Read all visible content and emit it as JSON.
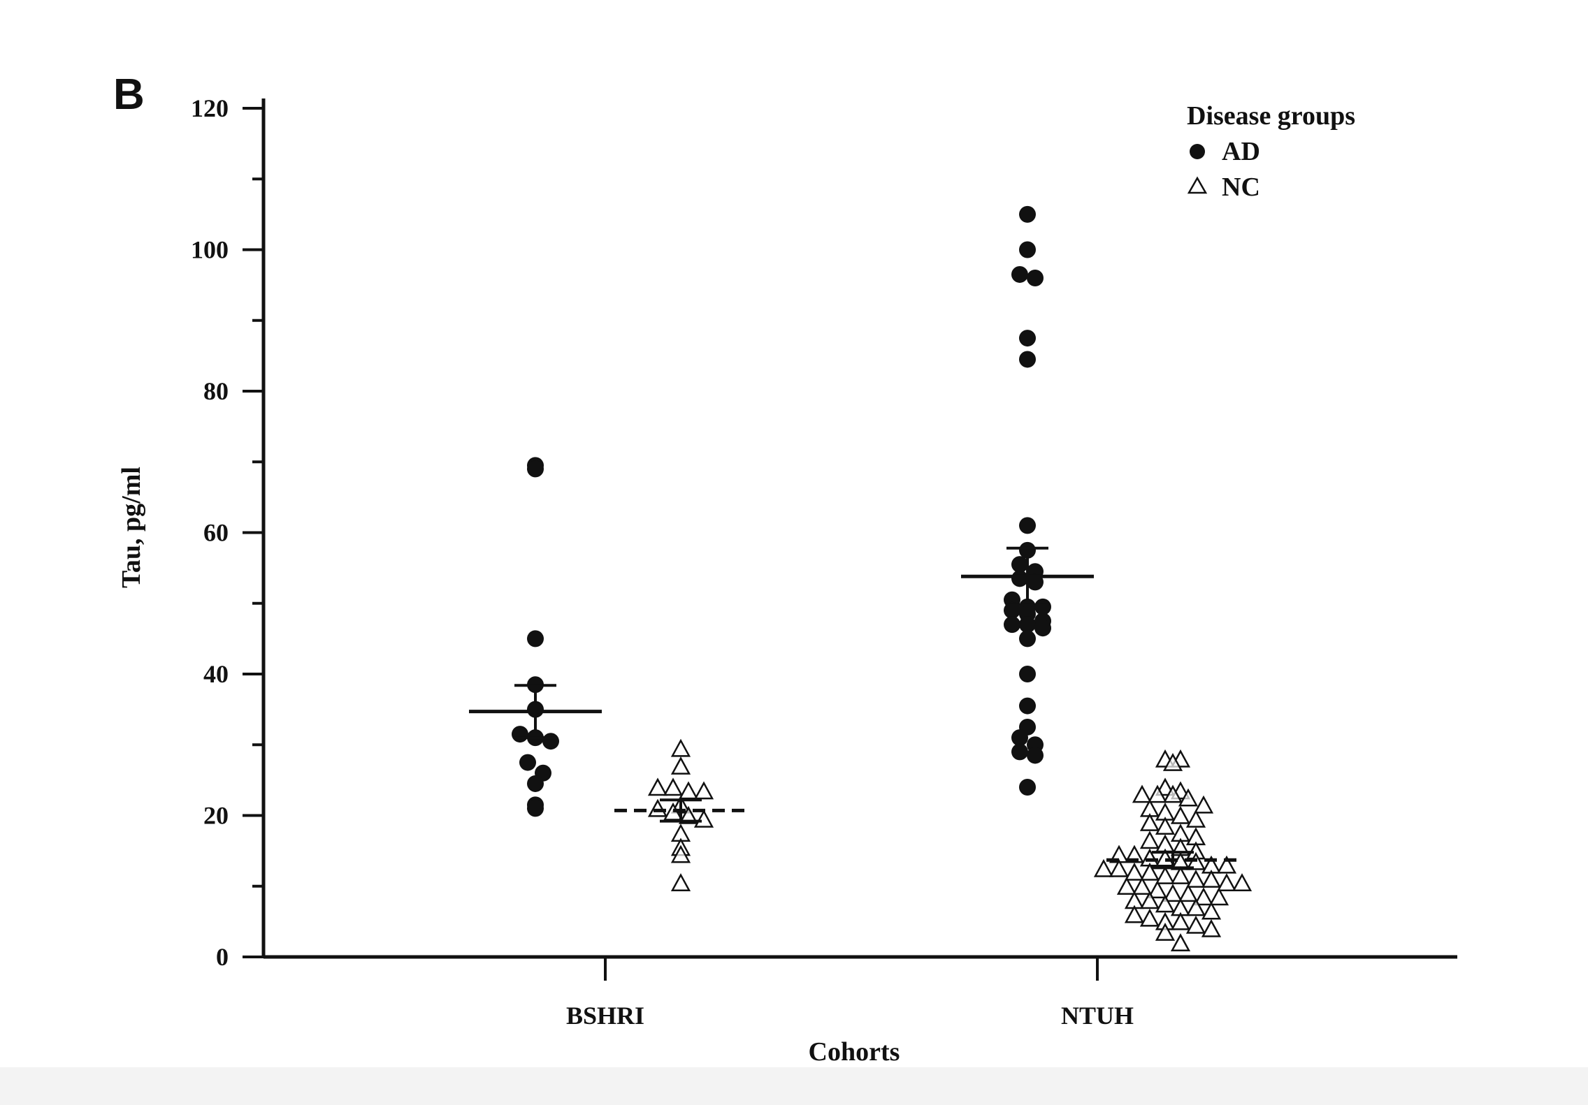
{
  "panel_label": "B",
  "chart_data": {
    "type": "scatter",
    "xlabel": "Cohorts",
    "ylabel": "Tau, pg/ml",
    "categories": [
      "BSHRI",
      "NTUH"
    ],
    "ylim": [
      0,
      120
    ],
    "yticks": [
      0,
      20,
      40,
      60,
      80,
      100,
      120
    ],
    "grid": false,
    "legend": {
      "title": "Disease groups",
      "placement": "top-right",
      "entries": [
        {
          "label": "AD",
          "marker": "filled-circle"
        },
        {
          "label": "NC",
          "marker": "open-triangle"
        }
      ]
    },
    "series": [
      {
        "name": "AD",
        "marker": "filled-circle",
        "color": "#111111",
        "groups": [
          {
            "category": "BSHRI",
            "mean": 34.7,
            "sem_upper": 38.4,
            "sem_lower": 31.0,
            "values": [
              69.5,
              69.0,
              45.0,
              38.5,
              35.0,
              31.5,
              31.0,
              30.5,
              27.5,
              26.0,
              24.5,
              21.5,
              21.0
            ]
          },
          {
            "category": "NTUH",
            "mean": 53.8,
            "sem_upper": 57.8,
            "sem_lower": 49.8,
            "values": [
              105.0,
              100.0,
              96.5,
              96.0,
              87.5,
              84.5,
              61.0,
              57.5,
              55.5,
              54.5,
              53.5,
              53.0,
              50.5,
              49.5,
              49.5,
              49.0,
              48.5,
              47.5,
              47.0,
              47.0,
              46.5,
              45.0,
              40.0,
              35.5,
              32.5,
              31.0,
              30.0,
              29.0,
              28.5,
              24.0
            ]
          }
        ]
      },
      {
        "name": "NC",
        "marker": "open-triangle",
        "color": "#111111",
        "groups": [
          {
            "category": "BSHRI",
            "mean": 20.7,
            "sem_upper": 22.2,
            "sem_lower": 19.2,
            "values": [
              29.5,
              27.0,
              24.0,
              24.0,
              23.5,
              23.5,
              21.5,
              21.0,
              20.5,
              20.0,
              19.5,
              17.5,
              15.5,
              14.5,
              10.5
            ]
          },
          {
            "category": "NTUH",
            "mean": 13.7,
            "sem_upper": 14.8,
            "sem_lower": 12.6,
            "values": [
              28.0,
              28.0,
              27.5,
              24.0,
              23.5,
              23.0,
              23.0,
              23.0,
              22.5,
              21.5,
              21.0,
              20.5,
              20.0,
              19.5,
              19.0,
              18.5,
              17.5,
              17.0,
              16.5,
              16.0,
              15.5,
              15.0,
              14.5,
              14.5,
              14.0,
              14.0,
              13.5,
              13.5,
              13.0,
              13.0,
              12.5,
              12.5,
              12.0,
              12.0,
              11.5,
              11.5,
              11.0,
              11.0,
              10.5,
              10.5,
              10.0,
              10.0,
              9.5,
              9.0,
              9.0,
              8.5,
              8.5,
              8.0,
              8.0,
              7.5,
              7.0,
              7.0,
              6.5,
              6.0,
              5.5,
              5.0,
              5.0,
              4.5,
              4.0,
              3.5,
              2.0
            ]
          }
        ]
      }
    ]
  }
}
